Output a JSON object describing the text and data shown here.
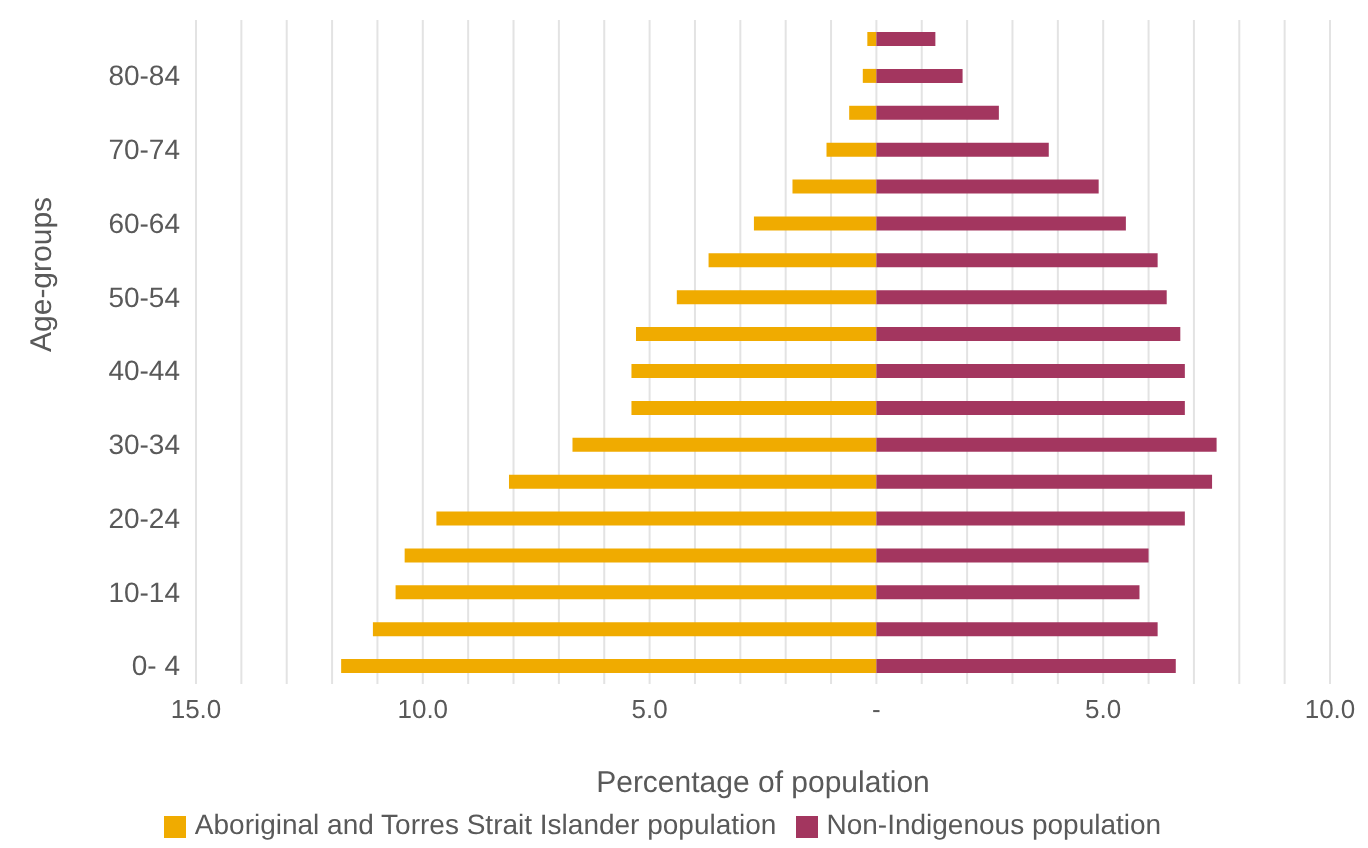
{
  "chart_data": {
    "type": "bar",
    "orientation": "horizontal",
    "stacked": true,
    "xlabel": "Percentage of population",
    "ylabel": "Age-groups",
    "categories": [
      null,
      "80-84",
      null,
      "70-74",
      null,
      "60-64",
      null,
      "50-54",
      null,
      "40-44",
      null,
      "30-34",
      null,
      "20-24",
      null,
      "10-14",
      null,
      "0- 4"
    ],
    "series": [
      {
        "name": "Aboriginal and Torres Strait Islander population",
        "color": "#f0ab00",
        "values": [
          -0.2,
          -0.3,
          -0.6,
          -1.1,
          -1.85,
          -2.7,
          -3.7,
          -4.4,
          -5.3,
          -5.4,
          -5.4,
          -6.7,
          -8.1,
          -9.7,
          -10.4,
          -10.6,
          -11.1,
          -11.8
        ]
      },
      {
        "name": "Non-Indigenous population",
        "color": "#a3365f",
        "values": [
          1.3,
          1.9,
          2.7,
          3.8,
          4.9,
          5.5,
          6.2,
          6.4,
          6.7,
          6.8,
          6.8,
          7.5,
          7.4,
          6.8,
          6.0,
          5.8,
          6.2,
          6.6
        ]
      }
    ],
    "xlim": [
      -15,
      10
    ],
    "xticks": [
      {
        "value": -15,
        "label": "15.0"
      },
      {
        "value": -14,
        "label": null
      },
      {
        "value": -13,
        "label": null
      },
      {
        "value": -12,
        "label": null
      },
      {
        "value": -11,
        "label": null
      },
      {
        "value": -10,
        "label": "10.0"
      },
      {
        "value": -9,
        "label": null
      },
      {
        "value": -8,
        "label": null
      },
      {
        "value": -7,
        "label": null
      },
      {
        "value": -6,
        "label": null
      },
      {
        "value": -5,
        "label": "5.0"
      },
      {
        "value": -4,
        "label": null
      },
      {
        "value": -3,
        "label": null
      },
      {
        "value": -2,
        "label": null
      },
      {
        "value": -1,
        "label": null
      },
      {
        "value": 0,
        "label": "-"
      },
      {
        "value": 1,
        "label": null
      },
      {
        "value": 2,
        "label": null
      },
      {
        "value": 3,
        "label": null
      },
      {
        "value": 4,
        "label": null
      },
      {
        "value": 5,
        "label": "5.0"
      },
      {
        "value": 6,
        "label": null
      },
      {
        "value": 7,
        "label": null
      },
      {
        "value": 8,
        "label": null
      },
      {
        "value": 9,
        "label": null
      },
      {
        "value": 10,
        "label": "10.0"
      }
    ],
    "grid": "x",
    "legend": "bottom"
  }
}
